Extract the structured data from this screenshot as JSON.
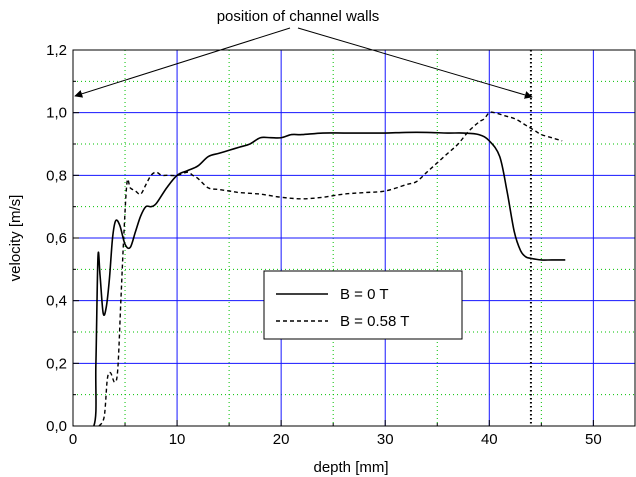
{
  "chart_data": {
    "type": "line",
    "annotation": "position of channel walls",
    "xlabel": "depth [mm]",
    "ylabel": "velocity [m/s]",
    "xlim": [
      0,
      54
    ],
    "ylim": [
      0,
      1.2
    ],
    "x_ticks": [
      0,
      10,
      20,
      30,
      40,
      50
    ],
    "x_tick_labels": [
      "0",
      "10",
      "20",
      "30",
      "40",
      "50"
    ],
    "y_ticks": [
      0,
      0.2,
      0.4,
      0.6,
      0.8,
      1.0,
      1.2
    ],
    "y_tick_labels": [
      "0,0",
      "0,2",
      "0,4",
      "0,6",
      "0,8",
      "1,0",
      "1,2"
    ],
    "major_grid": "blue",
    "minor_grid": "green dotted",
    "legend_position": "center",
    "wall_positions": [
      0,
      44
    ],
    "series": [
      {
        "name": "B = 0 T",
        "style": "solid",
        "color": "#000000",
        "x": [
          0,
          2.0,
          2.2,
          2.4,
          2.6,
          2.9,
          3.2,
          3.5,
          3.8,
          4.1,
          4.5,
          5.0,
          5.5,
          6.0,
          6.5,
          7.0,
          7.5,
          8.0,
          9.0,
          10.0,
          11.0,
          12.0,
          13.0,
          14.0,
          15.0,
          16.0,
          17.0,
          18.0,
          19.0,
          20.0,
          21.0,
          22.0,
          24.0,
          26.0,
          28.0,
          30.0,
          32.0,
          34.0,
          36.0,
          37.5,
          39.0,
          40.0,
          41.0,
          41.7,
          42.4,
          43.0,
          43.5,
          44.0,
          45.0,
          46.0,
          47.3
        ],
        "y": [
          0,
          0,
          0.2,
          0.54,
          0.48,
          0.36,
          0.38,
          0.47,
          0.6,
          0.655,
          0.64,
          0.58,
          0.57,
          0.62,
          0.67,
          0.7,
          0.7,
          0.71,
          0.76,
          0.8,
          0.815,
          0.83,
          0.86,
          0.87,
          0.88,
          0.89,
          0.9,
          0.92,
          0.92,
          0.92,
          0.93,
          0.93,
          0.935,
          0.935,
          0.935,
          0.935,
          0.937,
          0.937,
          0.935,
          0.935,
          0.93,
          0.91,
          0.86,
          0.75,
          0.62,
          0.56,
          0.54,
          0.535,
          0.53,
          0.53,
          0.53
        ]
      },
      {
        "name": "B = 0.58 T",
        "style": "dashed",
        "color": "#000000",
        "x": [
          2.5,
          3.0,
          3.3,
          3.6,
          4.0,
          4.3,
          4.6,
          4.9,
          5.2,
          5.5,
          6.0,
          6.5,
          7.0,
          7.5,
          8.0,
          8.5,
          9.0,
          10.0,
          11.0,
          11.5,
          12.0,
          13.0,
          14.0,
          15.0,
          16.0,
          18.0,
          20.0,
          22.0,
          24.0,
          26.0,
          28.0,
          30.0,
          32.0,
          33.0,
          34.0,
          35.0,
          36.0,
          37.0,
          38.0,
          39.0,
          39.5,
          40.0,
          40.5,
          41.5,
          42.5,
          43.5,
          44.0,
          44.5,
          45.0,
          46.0,
          47.0
        ],
        "y": [
          0,
          0.03,
          0.15,
          0.17,
          0.14,
          0.18,
          0.4,
          0.62,
          0.78,
          0.76,
          0.75,
          0.74,
          0.77,
          0.8,
          0.81,
          0.8,
          0.8,
          0.8,
          0.81,
          0.8,
          0.79,
          0.76,
          0.755,
          0.75,
          0.745,
          0.74,
          0.73,
          0.725,
          0.73,
          0.74,
          0.745,
          0.75,
          0.77,
          0.78,
          0.81,
          0.84,
          0.87,
          0.9,
          0.94,
          0.97,
          0.98,
          1.0,
          1.0,
          0.99,
          0.98,
          0.96,
          0.95,
          0.94,
          0.93,
          0.92,
          0.91
        ]
      }
    ]
  }
}
